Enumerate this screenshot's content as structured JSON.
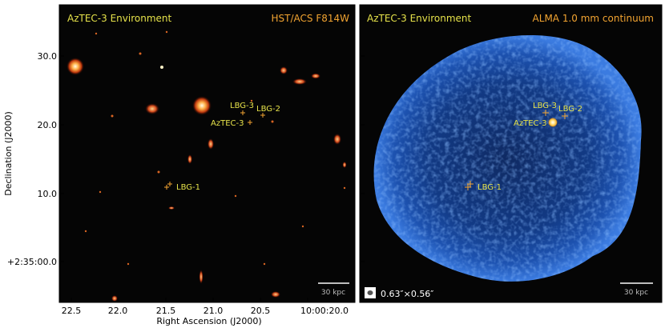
{
  "panels": {
    "left": {
      "title": "AzTEC-3 Environment",
      "instrument": "HST/ACS F814W",
      "scale_bar": "30 kpc",
      "sources": [
        "LBG-3",
        "LBG-2",
        "AzTEC-3",
        "LBG-1"
      ]
    },
    "right": {
      "title": "AzTEC-3 Environment",
      "instrument": "ALMA 1.0 mm continuum",
      "scale_bar": "30 kpc",
      "beam": "0.63″×0.56″",
      "sources": [
        "LBG-3",
        "LBG-2",
        "AzTEC-3",
        "LBG-1"
      ]
    }
  },
  "axes": {
    "xlabel": "Right Ascension (J2000)",
    "ylabel": "Declination (J2000)",
    "x_ticks": [
      "22.5",
      "22.0",
      "21.5",
      "21.0",
      "20.5",
      "10:00:20.0"
    ],
    "y_ticks": [
      "30.0",
      "20.0",
      "10.0",
      "+2:35:00.0"
    ]
  },
  "colors": {
    "title_yellow": "#e6e24a",
    "instrument_orange": "#f2a431",
    "source_label": "#e6e24a",
    "marker_orange": "#f2a431",
    "background": "#050505",
    "alma_blue": "#2b62c8"
  }
}
